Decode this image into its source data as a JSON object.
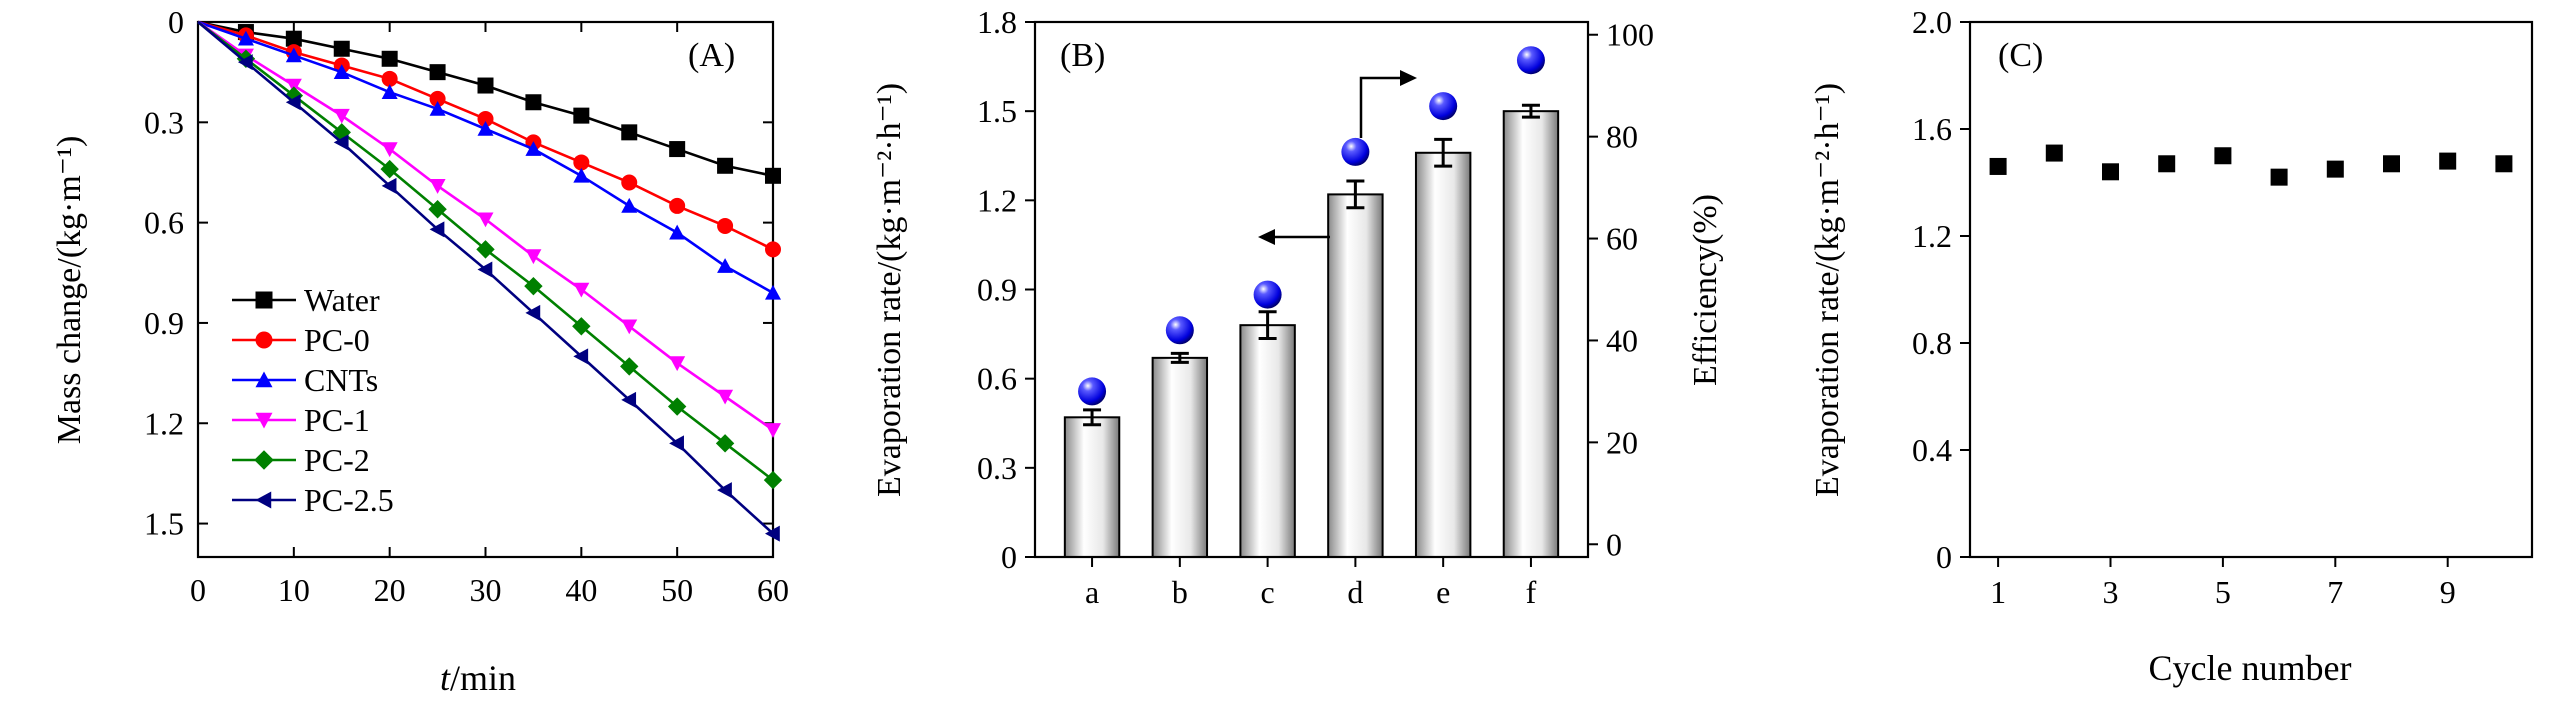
{
  "chart_data": [
    {
      "type": "line",
      "panel_label": "(A)",
      "xlabel_italic": "t",
      "xlabel_rest": "/min",
      "ylabel": "Mass change/(kg·m⁻¹)",
      "xlim": [
        0,
        60
      ],
      "ylim": [
        0,
        1.6
      ],
      "y_inverted": true,
      "xticks": [
        "0",
        "10",
        "20",
        "30",
        "40",
        "50",
        "60"
      ],
      "yticks": [
        "0",
        "0.3",
        "0.6",
        "0.9",
        "1.2",
        "1.5"
      ],
      "legend_position": "left",
      "x": [
        0,
        5,
        10,
        15,
        20,
        25,
        30,
        35,
        40,
        45,
        50,
        55,
        60
      ],
      "series": [
        {
          "name": "Water",
          "color": "#000000",
          "marker": "square",
          "values": [
            0,
            0.03,
            0.05,
            0.08,
            0.11,
            0.15,
            0.19,
            0.24,
            0.28,
            0.33,
            0.38,
            0.43,
            0.46
          ]
        },
        {
          "name": "PC-0",
          "color": "#ff0000",
          "marker": "circle",
          "values": [
            0,
            0.04,
            0.09,
            0.13,
            0.17,
            0.23,
            0.29,
            0.36,
            0.42,
            0.48,
            0.55,
            0.61,
            0.68
          ]
        },
        {
          "name": "CNTs",
          "color": "#0000ff",
          "marker": "triangle-up",
          "values": [
            0,
            0.05,
            0.1,
            0.15,
            0.21,
            0.26,
            0.32,
            0.38,
            0.46,
            0.55,
            0.63,
            0.73,
            0.81
          ]
        },
        {
          "name": "PC-1",
          "color": "#ff00ff",
          "marker": "triangle-down",
          "values": [
            0,
            0.1,
            0.19,
            0.28,
            0.38,
            0.49,
            0.59,
            0.7,
            0.8,
            0.91,
            1.02,
            1.12,
            1.22
          ]
        },
        {
          "name": "PC-2",
          "color": "#008000",
          "marker": "diamond",
          "values": [
            0,
            0.11,
            0.22,
            0.33,
            0.44,
            0.56,
            0.68,
            0.79,
            0.91,
            1.03,
            1.15,
            1.26,
            1.37
          ]
        },
        {
          "name": "PC-2.5",
          "color": "#000080",
          "marker": "triangle-left",
          "values": [
            0,
            0.12,
            0.24,
            0.36,
            0.49,
            0.62,
            0.74,
            0.87,
            1.0,
            1.13,
            1.26,
            1.4,
            1.53
          ]
        }
      ]
    },
    {
      "type": "bar",
      "panel_label": "(B)",
      "xlabel": "",
      "ylabel": "Evaporation rate/(kg·m⁻²·h⁻¹)",
      "ylabel_right": "Efficiency(%)",
      "ylim": [
        0,
        1.8
      ],
      "ylim_right": [
        -2.5,
        102.5
      ],
      "categories": [
        "a",
        "b",
        "c",
        "d",
        "e",
        "f"
      ],
      "yticks": [
        "0",
        "0.3",
        "0.6",
        "0.9",
        "1.2",
        "1.5",
        "1.8"
      ],
      "yticks_right": [
        "0",
        "20",
        "40",
        "60",
        "80",
        "100"
      ],
      "values": [
        0.47,
        0.67,
        0.78,
        1.22,
        1.36,
        1.5
      ],
      "errors": [
        0.025,
        0.015,
        0.045,
        0.045,
        0.045,
        0.02
      ],
      "efficiency": {
        "name": "Efficiency",
        "marker": "sphere",
        "color": "#0000ee",
        "values": [
          30,
          42,
          49,
          77,
          86,
          95
        ]
      },
      "arrows": [
        {
          "points_to": "left axis",
          "near": "d"
        },
        {
          "points_to": "right axis",
          "near": "d"
        }
      ]
    },
    {
      "type": "scatter",
      "panel_label": "(C)",
      "xlabel": "Cycle number",
      "ylabel": "Evaporation rate/(kg·m⁻²·h⁻¹)",
      "xlim": [
        0.5,
        10.5
      ],
      "ylim": [
        0,
        2.0
      ],
      "xticks": [
        "1",
        "3",
        "5",
        "7",
        "9"
      ],
      "yticks": [
        "0",
        "0.4",
        "0.8",
        "1.2",
        "1.6",
        "2.0"
      ],
      "x": [
        1,
        2,
        3,
        4,
        5,
        6,
        7,
        8,
        9,
        10
      ],
      "values": [
        1.46,
        1.51,
        1.44,
        1.47,
        1.5,
        1.42,
        1.45,
        1.47,
        1.48,
        1.47
      ],
      "marker": "square",
      "color": "#000000"
    }
  ]
}
